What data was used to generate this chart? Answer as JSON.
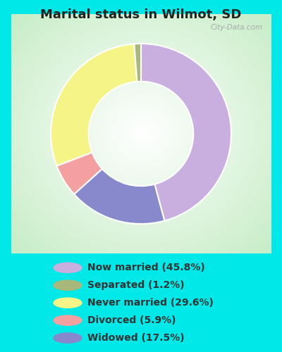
{
  "title": "Marital status in Wilmot, SD",
  "title_fontsize": 13,
  "title_fontweight": "bold",
  "slices": [
    45.8,
    17.5,
    5.9,
    29.6,
    1.2
  ],
  "labels": [
    "Now married (45.8%)",
    "Separated (1.2%)",
    "Never married (29.6%)",
    "Divorced (5.9%)",
    "Widowed (17.5%)"
  ],
  "legend_colors": [
    "#c9aee0",
    "#a8b87a",
    "#f5f587",
    "#f4a0a0",
    "#8888cc"
  ],
  "slice_colors": [
    "#c9aee0",
    "#8888cc",
    "#f4a0a0",
    "#f5f587",
    "#a8b87a"
  ],
  "startangle": 90,
  "bg_cyan": "#00e8e8",
  "bg_chart_colors": [
    "#c8e8c8",
    "#e8f5e8",
    "#ffffff",
    "#e8f5e8",
    "#c8e8c8"
  ],
  "watermark": "City-Data.com",
  "legend_text_color": "#333333",
  "legend_fontsize": 10,
  "title_color": "#222222",
  "donut_width": 0.42
}
